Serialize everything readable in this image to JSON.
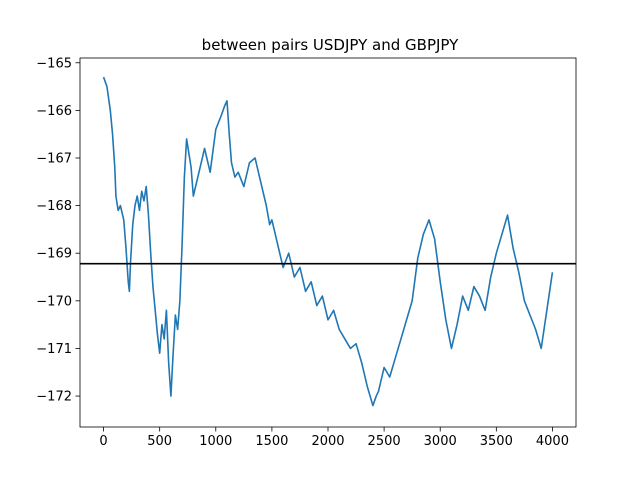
{
  "chart_data": {
    "type": "line",
    "title": "between pairs USDJPY and GBPJPY",
    "xlabel": "",
    "ylabel": "",
    "xlim": [
      -210,
      4210
    ],
    "ylim": [
      -172.65,
      -164.9
    ],
    "grid": false,
    "legend": "none",
    "x_ticks": [
      0,
      500,
      1000,
      1500,
      2000,
      2500,
      3000,
      3500,
      4000
    ],
    "x_tick_labels": [
      "0",
      "500",
      "1000",
      "1500",
      "2000",
      "2500",
      "3000",
      "3500",
      "4000"
    ],
    "y_ticks": [
      -165,
      -166,
      -167,
      -168,
      -169,
      -170,
      -171,
      -172
    ],
    "y_tick_labels": [
      "−165",
      "−166",
      "−167",
      "−168",
      "−169",
      "−170",
      "−171",
      "−172"
    ],
    "hline": {
      "y": -169.22,
      "color": "#000000"
    },
    "series": [
      {
        "color": "#1f77b4",
        "x": [
          0,
          30,
          60,
          80,
          100,
          110,
          130,
          150,
          180,
          200,
          220,
          230,
          240,
          260,
          280,
          300,
          320,
          340,
          360,
          380,
          400,
          420,
          440,
          460,
          480,
          500,
          520,
          540,
          560,
          580,
          600,
          620,
          640,
          660,
          680,
          700,
          720,
          740,
          760,
          780,
          800,
          830,
          860,
          900,
          950,
          1000,
          1050,
          1080,
          1100,
          1120,
          1140,
          1170,
          1200,
          1250,
          1300,
          1350,
          1400,
          1450,
          1480,
          1500,
          1550,
          1600,
          1650,
          1700,
          1750,
          1800,
          1850,
          1900,
          1950,
          2000,
          2050,
          2100,
          2150,
          2200,
          2250,
          2300,
          2350,
          2400,
          2430,
          2450,
          2500,
          2550,
          2600,
          2650,
          2700,
          2750,
          2800,
          2850,
          2900,
          2950,
          3000,
          3050,
          3100,
          3150,
          3200,
          3250,
          3300,
          3350,
          3400,
          3450,
          3500,
          3550,
          3600,
          3650,
          3700,
          3750,
          3800,
          3850,
          3900,
          3950,
          4000
        ],
        "y": [
          -165.3,
          -165.5,
          -166.0,
          -166.5,
          -167.2,
          -167.8,
          -168.1,
          -168.0,
          -168.3,
          -168.9,
          -169.6,
          -169.8,
          -169.2,
          -168.4,
          -168.0,
          -167.8,
          -168.1,
          -167.7,
          -167.9,
          -167.6,
          -168.2,
          -169.0,
          -169.7,
          -170.2,
          -170.7,
          -171.1,
          -170.5,
          -170.8,
          -170.2,
          -171.3,
          -172.0,
          -171.1,
          -170.3,
          -170.6,
          -170.0,
          -168.8,
          -167.4,
          -166.6,
          -166.9,
          -167.2,
          -167.8,
          -167.5,
          -167.2,
          -166.8,
          -167.3,
          -166.4,
          -166.1,
          -165.9,
          -165.8,
          -166.5,
          -167.1,
          -167.4,
          -167.3,
          -167.6,
          -167.1,
          -167.0,
          -167.5,
          -168.0,
          -168.4,
          -168.3,
          -168.8,
          -169.3,
          -169.0,
          -169.5,
          -169.3,
          -169.8,
          -169.6,
          -170.1,
          -169.9,
          -170.4,
          -170.2,
          -170.6,
          -170.8,
          -171.0,
          -170.9,
          -171.3,
          -171.8,
          -172.2,
          -172.0,
          -171.9,
          -171.4,
          -171.6,
          -171.2,
          -170.8,
          -170.4,
          -170.0,
          -169.1,
          -168.6,
          -168.3,
          -168.7,
          -169.6,
          -170.4,
          -171.0,
          -170.5,
          -169.9,
          -170.2,
          -169.7,
          -169.9,
          -170.2,
          -169.5,
          -169.0,
          -168.6,
          -168.2,
          -168.9,
          -169.4,
          -170.0,
          -170.3,
          -170.6,
          -171.0,
          -170.2,
          -169.4
        ]
      }
    ]
  }
}
